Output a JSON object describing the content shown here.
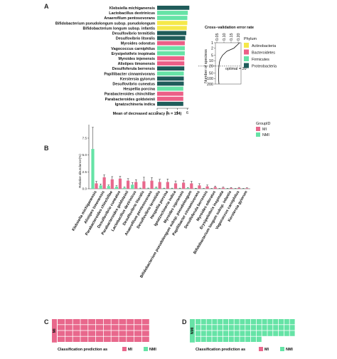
{
  "colors": {
    "Actinobacteria": "#f5e84a",
    "Bacteroidetes": "#ec5f87",
    "Firmicutes": "#66e3a6",
    "Proteobacteria": "#1f5c5a",
    "MI": "#e8688c",
    "NMI": "#66e3a6"
  },
  "panelA": {
    "label": "A",
    "xlabel": "Mean of decreased accuracy (n = 114)",
    "legend_title": "Phylum",
    "legend_items": [
      "Actinobacteria",
      "Bacteroidetes",
      "Firmicutes",
      "Proteobacteria"
    ]
  },
  "inset": {
    "title": "Cross−validation error rate",
    "ylabel": "Number of speciess",
    "annotation": "optimal = 20"
  },
  "panelB": {
    "label": "B",
    "ylabel": "Relative abundance(%)",
    "legend_title": "GroupID",
    "legend_items": [
      "MI",
      "NMI"
    ]
  },
  "panelC": {
    "label": "C",
    "ylabel": "MI",
    "caption": "Classification prediction as",
    "legend_items": [
      "MI",
      "NMI"
    ]
  },
  "panelD": {
    "label": "D",
    "ylabel": "NMI",
    "caption": "Classification prediction as",
    "legend_items": [
      "MI",
      "NMI"
    ]
  },
  "chart_data": [
    {
      "type": "bar",
      "orientation": "horizontal",
      "xlabel": "Mean of decreased accuracy (n = 114)",
      "xlim": [
        0,
        6.5
      ],
      "xticks": [
        0,
        2,
        4,
        6
      ],
      "legend_position": "right",
      "categories": [
        "Klebsiella michiganensis",
        "Lactobacillus dextrinicus",
        "Anaerofilum pentosovorans",
        "Bifidobacterium pseudolongum subsp. pseudolongum",
        "Bifidobacterium longum subsp. infantis",
        "Desulfovibrio termitidis",
        "Desulfovibrio litoralis",
        "Myroides odoratus",
        "Vagococcus carniphilus",
        "Erysipelothrix inopinata",
        "Myroides injenensis",
        "Alistipes timonensis",
        "Desulfoferula berrensis",
        "Papillibacter cinnamivorans",
        "Kerstersia gyiorum",
        "Desulfovibrio cuneatus",
        "Hespellia porcina",
        "Parabacteroides chinchillae",
        "Parabacteroides goldsteinii",
        "Ignatzschineria indica"
      ],
      "values": [
        6.4,
        6.1,
        6.0,
        6.0,
        5.9,
        5.8,
        5.6,
        5.5,
        5.5,
        5.5,
        5.4,
        5.4,
        5.4,
        5.3,
        5.3,
        5.3,
        5.2,
        5.2,
        5.2,
        5.2
      ],
      "phylum": [
        "Proteobacteria",
        "Firmicutes",
        "Firmicutes",
        "Actinobacteria",
        "Actinobacteria",
        "Proteobacteria",
        "Proteobacteria",
        "Bacteroidetes",
        "Firmicutes",
        "Firmicutes",
        "Bacteroidetes",
        "Bacteroidetes",
        "Proteobacteria",
        "Firmicutes",
        "Proteobacteria",
        "Proteobacteria",
        "Firmicutes",
        "Bacteroidetes",
        "Bacteroidetes",
        "Proteobacteria"
      ]
    },
    {
      "type": "line",
      "xlabel": "",
      "ylabel": "Number of speciess",
      "xticks": [
        0.05,
        0.1,
        0.15,
        0.2
      ],
      "yticks": [
        1,
        2,
        5,
        10,
        20,
        50,
        100,
        200
      ],
      "ylog": true,
      "yreversed": true,
      "optimal": 20,
      "annotation": "optimal = 20",
      "x": [
        0.21,
        0.17,
        0.12,
        0.09,
        0.075,
        0.068,
        0.065,
        0.063,
        0.062,
        0.062,
        0.063,
        0.064,
        0.065
      ],
      "y": [
        1,
        2,
        3,
        5,
        8,
        12,
        20,
        30,
        50,
        80,
        120,
        160,
        200
      ]
    },
    {
      "type": "bar",
      "ylabel": "Relative abundance(%)",
      "yticks": [
        0.0,
        2.5,
        5.0,
        7.5
      ],
      "ylim": [
        0,
        9.5
      ],
      "legend_title": "GroupID",
      "legend_position": "right",
      "categories": [
        "Klebsiella michiganensis",
        "Alistipes timonensis",
        "Parabacteroides chinchillae",
        "Desulfovibrio cuneatus",
        "Parabacteroides goldsteinii",
        "Lactobacillus dextrinicus",
        "Desulfovibrio litoralis",
        "Anaerofilum pentosovorans",
        "Desulfovibrio termitidis",
        "Hespellia porcina",
        "Ignatzschineria indica",
        "Myroides injenensis",
        "Bifidobacterium pseudolongum subsp. pseudolongum",
        "Papillibacter cinnamivorans",
        "Desulfoferula berrensis",
        "Myroides odoratus",
        "Erysipelothrix inopinata",
        "Bifidobacterium longum subsp. infantis",
        "Vagococcus carniphilus",
        "Kerstersia gyiorum"
      ],
      "series": [
        {
          "name": "MI",
          "values": [
            0.8,
            1.7,
            1.4,
            1.5,
            1.2,
            1.0,
            1.1,
            1.2,
            1.0,
            1.0,
            0.8,
            0.9,
            0.8,
            0.5,
            0.35,
            0.25,
            0.15,
            0.1,
            0.12,
            0.08
          ],
          "errors": [
            0.3,
            0.35,
            0.4,
            0.35,
            0.3,
            0.35,
            0.6,
            0.45,
            0.4,
            0.45,
            0.35,
            0.35,
            0.3,
            0.25,
            0.2,
            0.15,
            0.1,
            0.08,
            0.08,
            0.06
          ]
        },
        {
          "name": "NMI",
          "values": [
            5.9,
            0.5,
            0.4,
            0.3,
            0.15,
            0.6,
            0.05,
            0.05,
            0.15,
            0.05,
            0.05,
            0.05,
            0.1,
            0.05,
            0.03,
            0.03,
            0.03,
            0.04,
            0.03,
            0.03
          ],
          "errors": [
            3.2,
            0.2,
            0.15,
            0.15,
            0.1,
            0.3,
            0.05,
            0.05,
            0.08,
            0.04,
            0.04,
            0.04,
            0.06,
            0.03,
            0.02,
            0.02,
            0.02,
            0.02,
            0.02,
            0.02
          ]
        }
      ]
    },
    {
      "type": "heatmap",
      "group": "MI",
      "predicted_MI": 48,
      "predicted_NMI": 0,
      "legend": [
        "MI",
        "NMI"
      ]
    },
    {
      "type": "heatmap",
      "group": "NMI",
      "predicted_MI": 0,
      "predicted_NMI": 66,
      "legend": [
        "MI",
        "NMI"
      ]
    }
  ]
}
